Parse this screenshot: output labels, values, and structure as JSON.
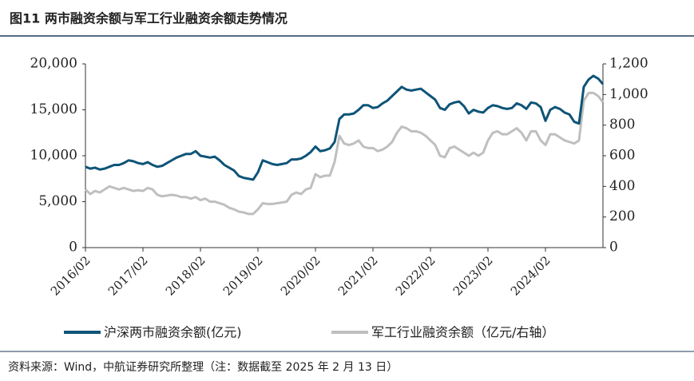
{
  "chart_data": {
    "type": "line",
    "title": "图11 两市融资余额与军工行业融资余额走势情况",
    "source": "资料来源：Wind，中航证券研究所整理（注：数据截至 2025 年 2 月 13 日）",
    "x": [
      "2016/02",
      "2016/03",
      "2016/04",
      "2016/05",
      "2016/06",
      "2016/07",
      "2016/08",
      "2016/09",
      "2016/10",
      "2016/11",
      "2016/12",
      "2017/01",
      "2017/02",
      "2017/03",
      "2017/04",
      "2017/05",
      "2017/06",
      "2017/07",
      "2017/08",
      "2017/09",
      "2017/10",
      "2017/11",
      "2017/12",
      "2018/01",
      "2018/02",
      "2018/03",
      "2018/04",
      "2018/05",
      "2018/06",
      "2018/07",
      "2018/08",
      "2018/09",
      "2018/10",
      "2018/11",
      "2018/12",
      "2019/01",
      "2019/02",
      "2019/03",
      "2019/04",
      "2019/05",
      "2019/06",
      "2019/07",
      "2019/08",
      "2019/09",
      "2019/10",
      "2019/11",
      "2019/12",
      "2020/01",
      "2020/02",
      "2020/03",
      "2020/04",
      "2020/05",
      "2020/06",
      "2020/07",
      "2020/08",
      "2020/09",
      "2020/10",
      "2020/11",
      "2020/12",
      "2021/01",
      "2021/02",
      "2021/03",
      "2021/04",
      "2021/05",
      "2021/06",
      "2021/07",
      "2021/08",
      "2021/09",
      "2021/10",
      "2021/11",
      "2021/12",
      "2022/01",
      "2022/02",
      "2022/03",
      "2022/04",
      "2022/05",
      "2022/06",
      "2022/07",
      "2022/08",
      "2022/09",
      "2022/10",
      "2022/11",
      "2022/12",
      "2023/01",
      "2023/02",
      "2023/03",
      "2023/04",
      "2023/05",
      "2023/06",
      "2023/07",
      "2023/08",
      "2023/09",
      "2023/10",
      "2023/11",
      "2023/12",
      "2024/01",
      "2024/02",
      "2024/03",
      "2024/04",
      "2024/05",
      "2024/06",
      "2024/07",
      "2024/08",
      "2024/09",
      "2024/10",
      "2024/11",
      "2024/12",
      "2025/01",
      "2025/02"
    ],
    "xlim": [
      "2016/02",
      "2025/02"
    ],
    "xticks": [
      "2016/02",
      "2017/02",
      "2018/02",
      "2019/02",
      "2020/02",
      "2021/02",
      "2022/02",
      "2023/02",
      "2024/02"
    ],
    "ylim": [
      0,
      20000
    ],
    "yticks": [
      0,
      {
        "value": 5000,
        "label": "5,000"
      },
      {
        "value": 10000,
        "label": "10,000"
      },
      {
        "value": 15000,
        "label": "15,000"
      },
      {
        "value": 20000,
        "label": "20,000"
      }
    ],
    "y2lim": [
      0,
      1200
    ],
    "y2ticks": [
      0,
      200,
      400,
      600,
      800,
      {
        "value": 1000,
        "label": "1,000"
      },
      {
        "value": 1200,
        "label": "1,200"
      }
    ],
    "series": [
      {
        "name": "沪深两市融资余额(亿元)",
        "color": "#0e5478",
        "values": [
          8800,
          8600,
          8700,
          8500,
          8600,
          8800,
          9000,
          9000,
          9200,
          9500,
          9400,
          9200,
          9100,
          9300,
          9000,
          8800,
          8900,
          9200,
          9500,
          9800,
          10000,
          10200,
          10200,
          10500,
          10000,
          9900,
          9800,
          9900,
          9500,
          9000,
          8700,
          8400,
          7800,
          7600,
          7500,
          7400,
          8200,
          9500,
          9300,
          9100,
          9000,
          9100,
          9200,
          9600,
          9600,
          9700,
          10000,
          10400,
          11000,
          10500,
          10600,
          10800,
          11500,
          14000,
          14500,
          14500,
          14600,
          15000,
          15500,
          15500,
          15200,
          15300,
          15700,
          16000,
          16500,
          17000,
          17500,
          17200,
          17100,
          17200,
          17300,
          16900,
          16500,
          16100,
          15200,
          15000,
          15600,
          15800,
          15900,
          15400,
          14600,
          15000,
          14800,
          14700,
          15200,
          15500,
          15400,
          15200,
          15100,
          15200,
          15700,
          15500,
          15100,
          15800,
          15700,
          15300,
          13800,
          15000,
          15300,
          15100,
          14700,
          14500,
          13700,
          13500,
          17500,
          18300,
          18700,
          18400,
          17800
        ]
      },
      {
        "name": "军工行业融资余额（亿元/右轴）",
        "color": "#bfbfbf",
        "axis": "y2",
        "values": [
          380,
          350,
          370,
          360,
          380,
          400,
          390,
          380,
          390,
          380,
          370,
          375,
          370,
          390,
          380,
          345,
          335,
          340,
          345,
          340,
          330,
          330,
          320,
          330,
          310,
          320,
          300,
          300,
          290,
          280,
          260,
          250,
          235,
          230,
          220,
          220,
          250,
          290,
          285,
          285,
          290,
          295,
          300,
          345,
          360,
          350,
          380,
          390,
          480,
          460,
          470,
          470,
          560,
          730,
          680,
          670,
          680,
          700,
          660,
          650,
          650,
          630,
          640,
          660,
          690,
          750,
          790,
          780,
          760,
          760,
          750,
          730,
          700,
          670,
          600,
          590,
          650,
          660,
          640,
          620,
          600,
          620,
          600,
          620,
          700,
          750,
          760,
          740,
          740,
          760,
          780,
          750,
          700,
          760,
          760,
          700,
          670,
          740,
          740,
          720,
          700,
          690,
          680,
          700,
          960,
          1010,
          1010,
          990,
          950
        ]
      }
    ]
  }
}
